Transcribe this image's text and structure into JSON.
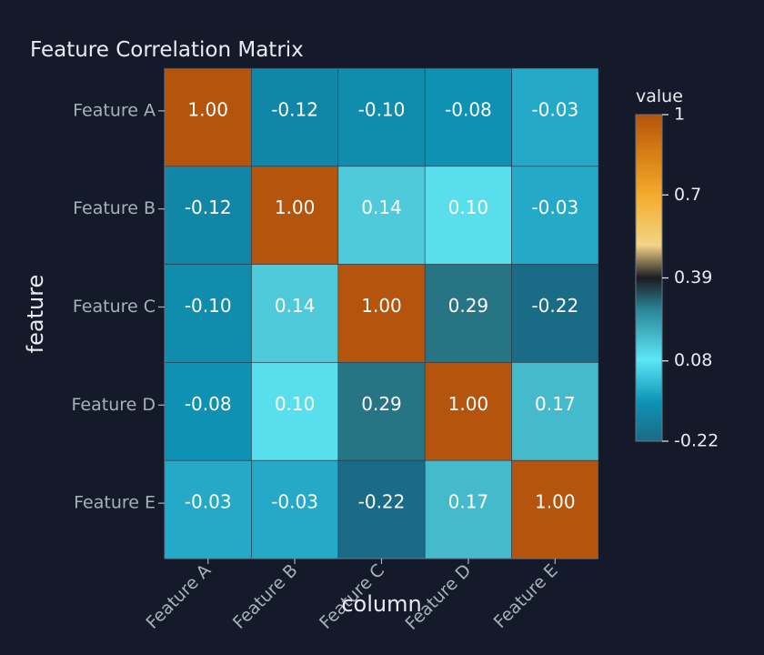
{
  "chart_data": {
    "type": "heatmap",
    "title": "Feature Correlation Matrix",
    "xlabel": "column",
    "ylabel": "feature",
    "x_categories": [
      "Feature A",
      "Feature B",
      "Feature C",
      "Feature D",
      "Feature E"
    ],
    "y_categories": [
      "Feature A",
      "Feature B",
      "Feature C",
      "Feature D",
      "Feature E"
    ],
    "values": [
      [
        1.0,
        -0.12,
        -0.1,
        -0.08,
        -0.03
      ],
      [
        -0.12,
        1.0,
        0.14,
        0.1,
        -0.03
      ],
      [
        -0.1,
        0.14,
        1.0,
        0.29,
        -0.22
      ],
      [
        -0.08,
        0.1,
        0.29,
        1.0,
        0.17
      ],
      [
        -0.03,
        -0.03,
        -0.22,
        0.17,
        1.0
      ]
    ],
    "value_labels": [
      [
        "1.00",
        "-0.12",
        "-0.10",
        "-0.08",
        "-0.03"
      ],
      [
        "-0.12",
        "1.00",
        "0.14",
        "0.10",
        "-0.03"
      ],
      [
        "-0.10",
        "0.14",
        "1.00",
        "0.29",
        "-0.22"
      ],
      [
        "-0.08",
        "0.10",
        "0.29",
        "1.00",
        "0.17"
      ],
      [
        "-0.03",
        "-0.03",
        "-0.22",
        "0.17",
        "1.00"
      ]
    ],
    "colorbar": {
      "title": "value",
      "range": [
        -0.22,
        1
      ],
      "tick_values": [
        1,
        0.7,
        0.39,
        0.08,
        -0.22
      ],
      "tick_labels": [
        "1",
        "0.7",
        "0.39",
        "0.08",
        "-0.22"
      ]
    },
    "colorscale": [
      [
        0.0,
        "#1a6b86"
      ],
      [
        0.12,
        "#0e93b6"
      ],
      [
        0.25,
        "#5de6f6"
      ],
      [
        0.4,
        "#2a8899"
      ],
      [
        0.5,
        "#1b1b22"
      ],
      [
        0.6,
        "#f3d486"
      ],
      [
        0.75,
        "#f3ad2e"
      ],
      [
        0.88,
        "#d77e15"
      ],
      [
        1.0,
        "#b4540d"
      ]
    ],
    "colors": {
      "background": "#141a29",
      "cell_border": "#2b3649"
    }
  }
}
